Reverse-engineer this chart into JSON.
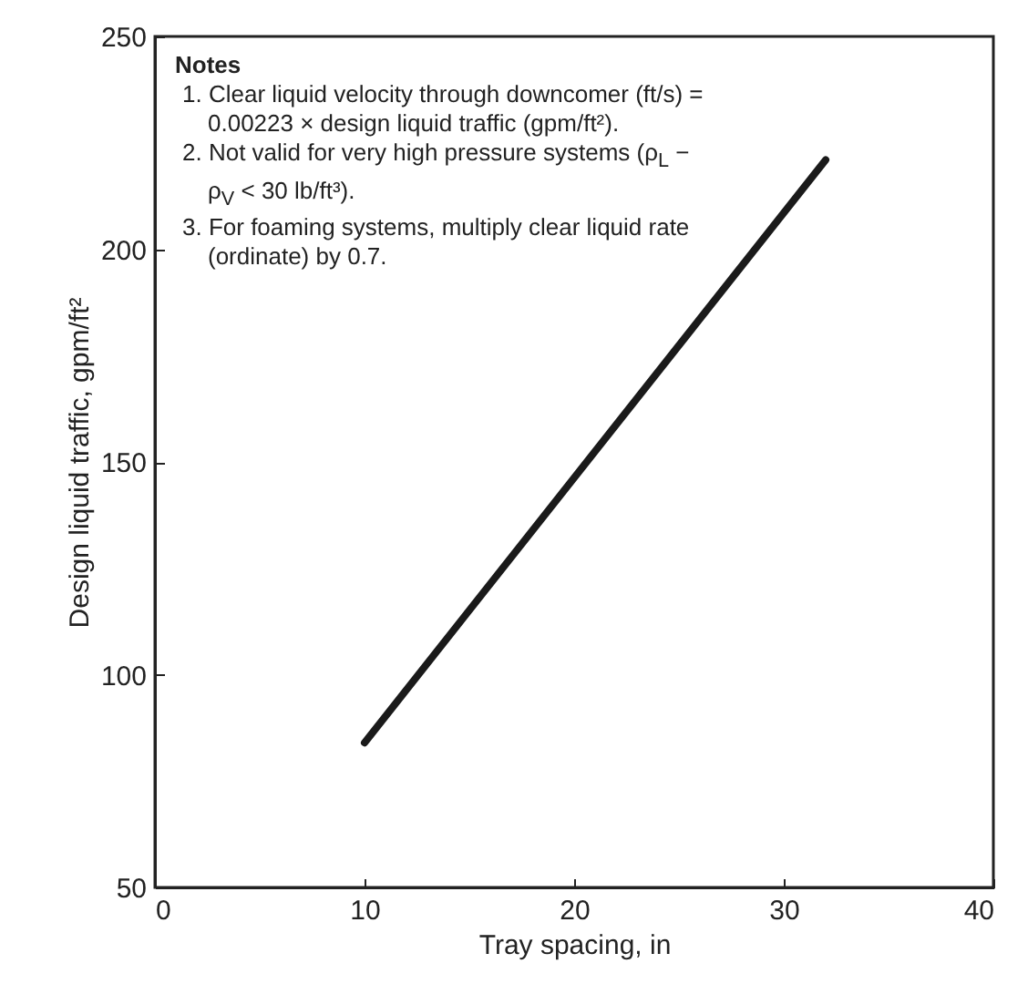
{
  "chart_data": {
    "type": "line",
    "xlabel": "Tray spacing, in",
    "ylabel": "Design liquid traffic, gpm/ft²",
    "x": [
      10,
      32
    ],
    "values": [
      84,
      221
    ],
    "color": "#1a1a1a",
    "xlim": [
      0,
      40
    ],
    "xticks": [
      0,
      10,
      20,
      30,
      40
    ],
    "ylim": [
      50,
      250
    ],
    "yticks": [
      50,
      100,
      150,
      200,
      250
    ],
    "grid": false,
    "legend": false,
    "marker": "none",
    "line_style": "solid",
    "annotations": [
      "Notes",
      "1. Clear liquid velocity through downcomer (ft/s) = 0.00223 × design liquid traffic (gpm/ft²).",
      "2. Not valid for very high pressure systems (ρ$_{L}$ − ρ$_{V}$ < 30 lb/ft³).",
      "3. For foaming systems, multiply clear liquid rate (ordinate) by 0.7."
    ]
  }
}
